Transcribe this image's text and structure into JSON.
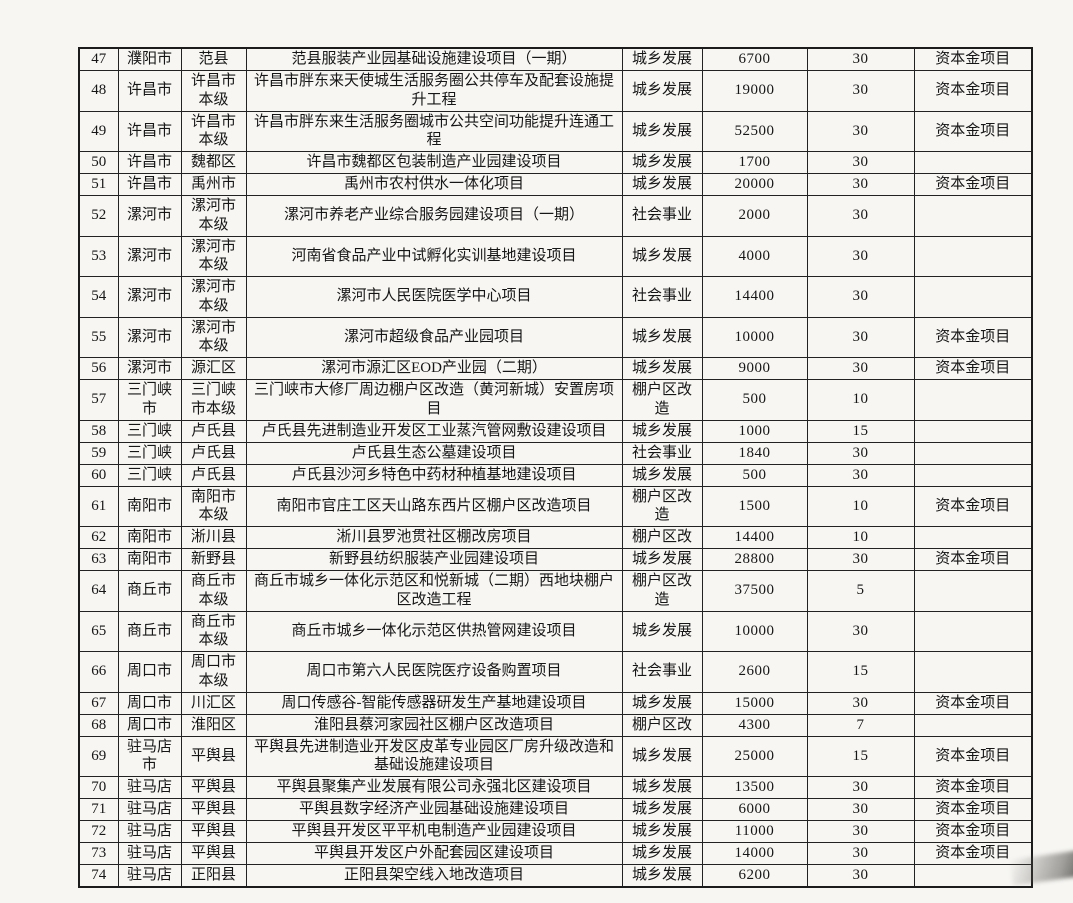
{
  "document": {
    "type": "scanned-project-funding-table",
    "rows": [
      {
        "no": "47",
        "city": "濮阳市",
        "county": "范县",
        "project": "范县服装产业园基础设施建设项目（一期）",
        "category": "城乡发展",
        "amount": "6700",
        "percent": "30",
        "note": "资本金项目"
      },
      {
        "no": "48",
        "city": "许昌市",
        "county": "许昌市本级",
        "project": "许昌市胖东来天使城生活服务圈公共停车及配套设施提升工程",
        "category": "城乡发展",
        "amount": "19000",
        "percent": "30",
        "note": "资本金项目"
      },
      {
        "no": "49",
        "city": "许昌市",
        "county": "许昌市本级",
        "project": "许昌市胖东来生活服务圈城市公共空间功能提升连通工程",
        "category": "城乡发展",
        "amount": "52500",
        "percent": "30",
        "note": "资本金项目"
      },
      {
        "no": "50",
        "city": "许昌市",
        "county": "魏都区",
        "project": "许昌市魏都区包装制造产业园建设项目",
        "category": "城乡发展",
        "amount": "1700",
        "percent": "30",
        "note": ""
      },
      {
        "no": "51",
        "city": "许昌市",
        "county": "禹州市",
        "project": "禹州市农村供水一体化项目",
        "category": "城乡发展",
        "amount": "20000",
        "percent": "30",
        "note": "资本金项目"
      },
      {
        "no": "52",
        "city": "漯河市",
        "county": "漯河市本级",
        "project": "漯河市养老产业综合服务园建设项目（一期）",
        "category": "社会事业",
        "amount": "2000",
        "percent": "30",
        "note": ""
      },
      {
        "no": "53",
        "city": "漯河市",
        "county": "漯河市本级",
        "project": "河南省食品产业中试孵化实训基地建设项目",
        "category": "城乡发展",
        "amount": "4000",
        "percent": "30",
        "note": ""
      },
      {
        "no": "54",
        "city": "漯河市",
        "county": "漯河市本级",
        "project": "漯河市人民医院医学中心项目",
        "category": "社会事业",
        "amount": "14400",
        "percent": "30",
        "note": ""
      },
      {
        "no": "55",
        "city": "漯河市",
        "county": "漯河市本级",
        "project": "漯河市超级食品产业园项目",
        "category": "城乡发展",
        "amount": "10000",
        "percent": "30",
        "note": "资本金项目"
      },
      {
        "no": "56",
        "city": "漯河市",
        "county": "源汇区",
        "project": "漯河市源汇区EOD产业园（二期）",
        "category": "城乡发展",
        "amount": "9000",
        "percent": "30",
        "note": "资本金项目"
      },
      {
        "no": "57",
        "city": "三门峡市",
        "county": "三门峡市本级",
        "project": "三门峡市大修厂周边棚户区改造（黄河新城）安置房项目",
        "category": "棚户区改造",
        "amount": "500",
        "percent": "10",
        "note": ""
      },
      {
        "no": "58",
        "city": "三门峡",
        "county": "卢氏县",
        "project": "卢氏县先进制造业开发区工业蒸汽管网敷设建设项目",
        "category": "城乡发展",
        "amount": "1000",
        "percent": "15",
        "note": ""
      },
      {
        "no": "59",
        "city": "三门峡",
        "county": "卢氏县",
        "project": "卢氏县生态公墓建设项目",
        "category": "社会事业",
        "amount": "1840",
        "percent": "30",
        "note": ""
      },
      {
        "no": "60",
        "city": "三门峡",
        "county": "卢氏县",
        "project": "卢氏县沙河乡特色中药材种植基地建设项目",
        "category": "城乡发展",
        "amount": "500",
        "percent": "30",
        "note": ""
      },
      {
        "no": "61",
        "city": "南阳市",
        "county": "南阳市本级",
        "project": "南阳市官庄工区天山路东西片区棚户区改造项目",
        "category": "棚户区改造",
        "amount": "1500",
        "percent": "10",
        "note": "资本金项目"
      },
      {
        "no": "62",
        "city": "南阳市",
        "county": "淅川县",
        "project": "淅川县罗池贯社区棚改房项目",
        "category": "棚户区改",
        "amount": "14400",
        "percent": "10",
        "note": ""
      },
      {
        "no": "63",
        "city": "南阳市",
        "county": "新野县",
        "project": "新野县纺织服装产业园建设项目",
        "category": "城乡发展",
        "amount": "28800",
        "percent": "30",
        "note": "资本金项目"
      },
      {
        "no": "64",
        "city": "商丘市",
        "county": "商丘市本级",
        "project": "商丘市城乡一体化示范区和悦新城（二期）西地块棚户区改造工程",
        "category": "棚户区改造",
        "amount": "37500",
        "percent": "5",
        "note": ""
      },
      {
        "no": "65",
        "city": "商丘市",
        "county": "商丘市本级",
        "project": "商丘市城乡一体化示范区供热管网建设项目",
        "category": "城乡发展",
        "amount": "10000",
        "percent": "30",
        "note": ""
      },
      {
        "no": "66",
        "city": "周口市",
        "county": "周口市本级",
        "project": "周口市第六人民医院医疗设备购置项目",
        "category": "社会事业",
        "amount": "2600",
        "percent": "15",
        "note": ""
      },
      {
        "no": "67",
        "city": "周口市",
        "county": "川汇区",
        "project": "周口传感谷-智能传感器研发生产基地建设项目",
        "category": "城乡发展",
        "amount": "15000",
        "percent": "30",
        "note": "资本金项目"
      },
      {
        "no": "68",
        "city": "周口市",
        "county": "淮阳区",
        "project": "淮阳县蔡河家园社区棚户区改造项目",
        "category": "棚户区改",
        "amount": "4300",
        "percent": "7",
        "note": ""
      },
      {
        "no": "69",
        "city": "驻马店市",
        "county": "平舆县",
        "project": "平舆县先进制造业开发区皮革专业园区厂房升级改造和基础设施建设项目",
        "category": "城乡发展",
        "amount": "25000",
        "percent": "15",
        "note": "资本金项目"
      },
      {
        "no": "70",
        "city": "驻马店",
        "county": "平舆县",
        "project": "平舆县聚集产业发展有限公司永强北区建设项目",
        "category": "城乡发展",
        "amount": "13500",
        "percent": "30",
        "note": "资本金项目"
      },
      {
        "no": "71",
        "city": "驻马店",
        "county": "平舆县",
        "project": "平舆县数字经济产业园基础设施建设项目",
        "category": "城乡发展",
        "amount": "6000",
        "percent": "30",
        "note": "资本金项目"
      },
      {
        "no": "72",
        "city": "驻马店",
        "county": "平舆县",
        "project": "平舆县开发区平平机电制造产业园建设项目",
        "category": "城乡发展",
        "amount": "11000",
        "percent": "30",
        "note": "资本金项目"
      },
      {
        "no": "73",
        "city": "驻马店",
        "county": "平舆县",
        "project": "平舆县开发区户外配套园区建设项目",
        "category": "城乡发展",
        "amount": "14000",
        "percent": "30",
        "note": "资本金项目"
      },
      {
        "no": "74",
        "city": "驻马店",
        "county": "正阳县",
        "project": "正阳县架空线入地改造项目",
        "category": "城乡发展",
        "amount": "6200",
        "percent": "30",
        "note": ""
      }
    ]
  }
}
